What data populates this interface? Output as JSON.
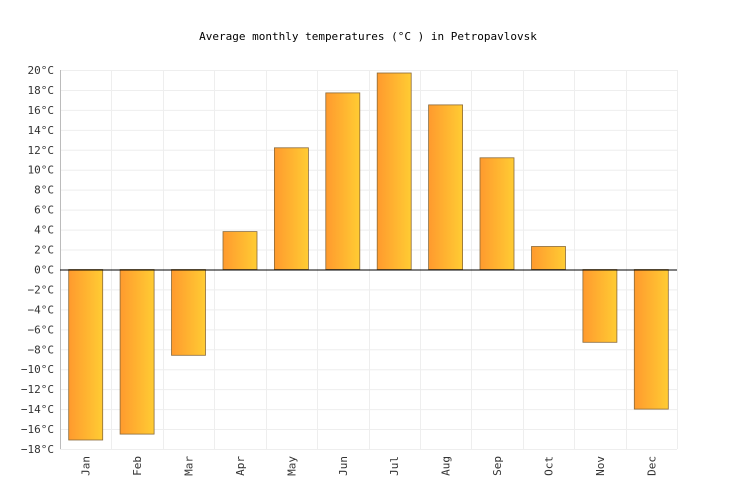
{
  "chart_data": {
    "type": "bar",
    "title": "Average monthly temperatures (°C ) in Petropavlovsk",
    "xlabel": "",
    "ylabel": "",
    "categories": [
      "Jan",
      "Feb",
      "Mar",
      "Apr",
      "May",
      "Jun",
      "Jul",
      "Aug",
      "Sep",
      "Oct",
      "Nov",
      "Dec"
    ],
    "values": [
      -17.1,
      -16.5,
      -8.6,
      3.8,
      12.2,
      17.7,
      19.7,
      16.5,
      11.2,
      2.3,
      -7.3,
      -14.0
    ],
    "ylim": [
      -18,
      20
    ],
    "yticks": [
      20,
      18,
      16,
      14,
      12,
      10,
      8,
      6,
      4,
      2,
      0,
      -2,
      -4,
      -6,
      -8,
      -10,
      -12,
      -14,
      -16,
      -18
    ],
    "ytick_labels": [
      "20°C",
      "18°C",
      "16°C",
      "14°C",
      "12°C",
      "10°C",
      "8°C",
      "6°C",
      "4°C",
      "2°C",
      "0°C",
      "−2°C",
      "−4°C",
      "−6°C",
      "−8°C",
      "−10°C",
      "−12°C",
      "−14°C",
      "−16°C",
      "−18°C"
    ],
    "grid": true,
    "legend": "none",
    "colors": {
      "bar_start": "#ff9a2e",
      "bar_end": "#ffcc33",
      "bar_border": "#8a6a3a",
      "grid": "#eeeeee",
      "zero_line": "#000000"
    }
  }
}
